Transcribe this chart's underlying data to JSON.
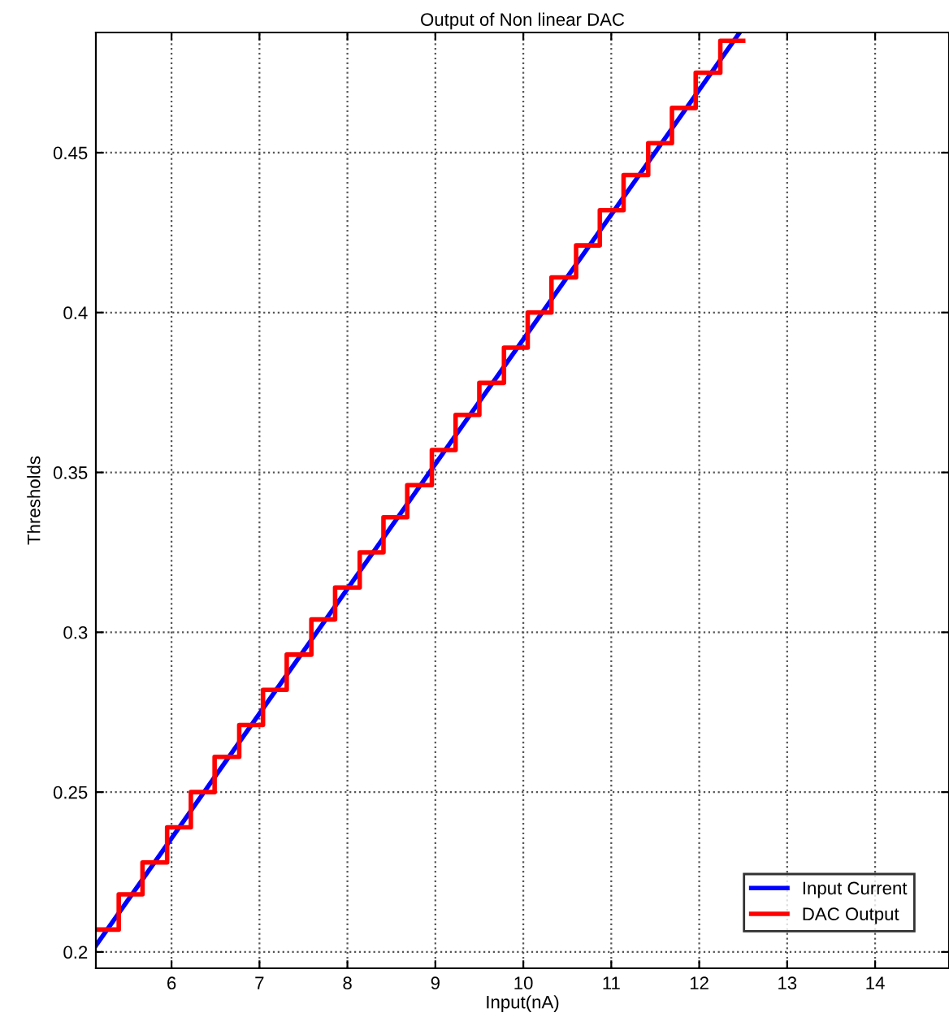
{
  "chart_data": {
    "type": "line",
    "title": "Output of Non linear DAC",
    "xlabel": "Input(nA)",
    "ylabel": "Thresholds",
    "xlim": [
      5.14,
      14.84
    ],
    "ylim": [
      0.1949,
      0.4876
    ],
    "xticks": [
      6,
      7,
      8,
      9,
      10,
      11,
      12,
      13,
      14
    ],
    "yticks": [
      {
        "value": 0.2,
        "label": "0.2"
      },
      {
        "value": 0.25,
        "label": "0.25"
      },
      {
        "value": 0.3,
        "label": "0.3"
      },
      {
        "value": 0.35,
        "label": "0.35"
      },
      {
        "value": 0.4,
        "label": "0.4"
      },
      {
        "value": 0.45,
        "label": "0.45"
      }
    ],
    "grid": true,
    "legend": "bottom right",
    "series": [
      {
        "name": "Input Current",
        "color": "#0000ff",
        "x": [
          5.14,
          12.46
        ],
        "values": [
          0.202,
          0.4876
        ]
      },
      {
        "name": "DAC Output",
        "color": "#ff0000",
        "type": "step",
        "x": [
          5.14,
          5.4,
          5.67,
          5.95,
          6.22,
          6.49,
          6.77,
          7.04,
          7.31,
          7.59,
          7.86,
          8.14,
          8.41,
          8.68,
          8.96,
          9.23,
          9.5,
          9.78,
          10.05,
          10.32,
          10.6,
          10.87,
          11.14,
          11.42,
          11.69,
          11.96,
          12.24,
          12.5
        ],
        "values": [
          0.207,
          0.218,
          0.228,
          0.239,
          0.25,
          0.261,
          0.271,
          0.282,
          0.293,
          0.304,
          0.314,
          0.325,
          0.336,
          0.346,
          0.357,
          0.368,
          0.378,
          0.389,
          0.4,
          0.411,
          0.421,
          0.432,
          0.443,
          0.453,
          0.464,
          0.475,
          0.485,
          0.485
        ]
      }
    ]
  }
}
